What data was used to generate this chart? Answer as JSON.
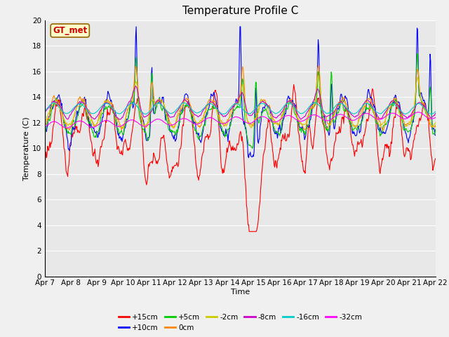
{
  "title": "Temperature Profile C",
  "xlabel": "Time",
  "ylabel": "Temperature (C)",
  "ylim": [
    0,
    20
  ],
  "series_labels": [
    "+15cm",
    "+10cm",
    "+5cm",
    "0cm",
    "-2cm",
    "-8cm",
    "-16cm",
    "-32cm"
  ],
  "series_colors": [
    "#ff0000",
    "#0000ff",
    "#00cc00",
    "#ff8800",
    "#cccc00",
    "#cc00cc",
    "#00cccc",
    "#ff00ff"
  ],
  "legend_box_color": "#ffffff",
  "legend_box_edge": "#aaaaaa",
  "annotation_text": "GT_met",
  "annotation_color": "#cc0000",
  "annotation_bg": "#ffffcc",
  "annotation_edge": "#996600",
  "bg_color": "#e8e8e8",
  "title_fontsize": 11,
  "axis_fontsize": 8,
  "tick_fontsize": 7.5,
  "xtick_labels": [
    "Apr 7",
    "Apr 8",
    "Apr 9",
    "Apr 10",
    "Apr 11",
    "Apr 12",
    "Apr 13",
    "Apr 14",
    "Apr 15",
    "Apr 16",
    "Apr 17",
    "Apr 18",
    "Apr 19",
    "Apr 20",
    "Apr 21",
    "Apr 22"
  ]
}
